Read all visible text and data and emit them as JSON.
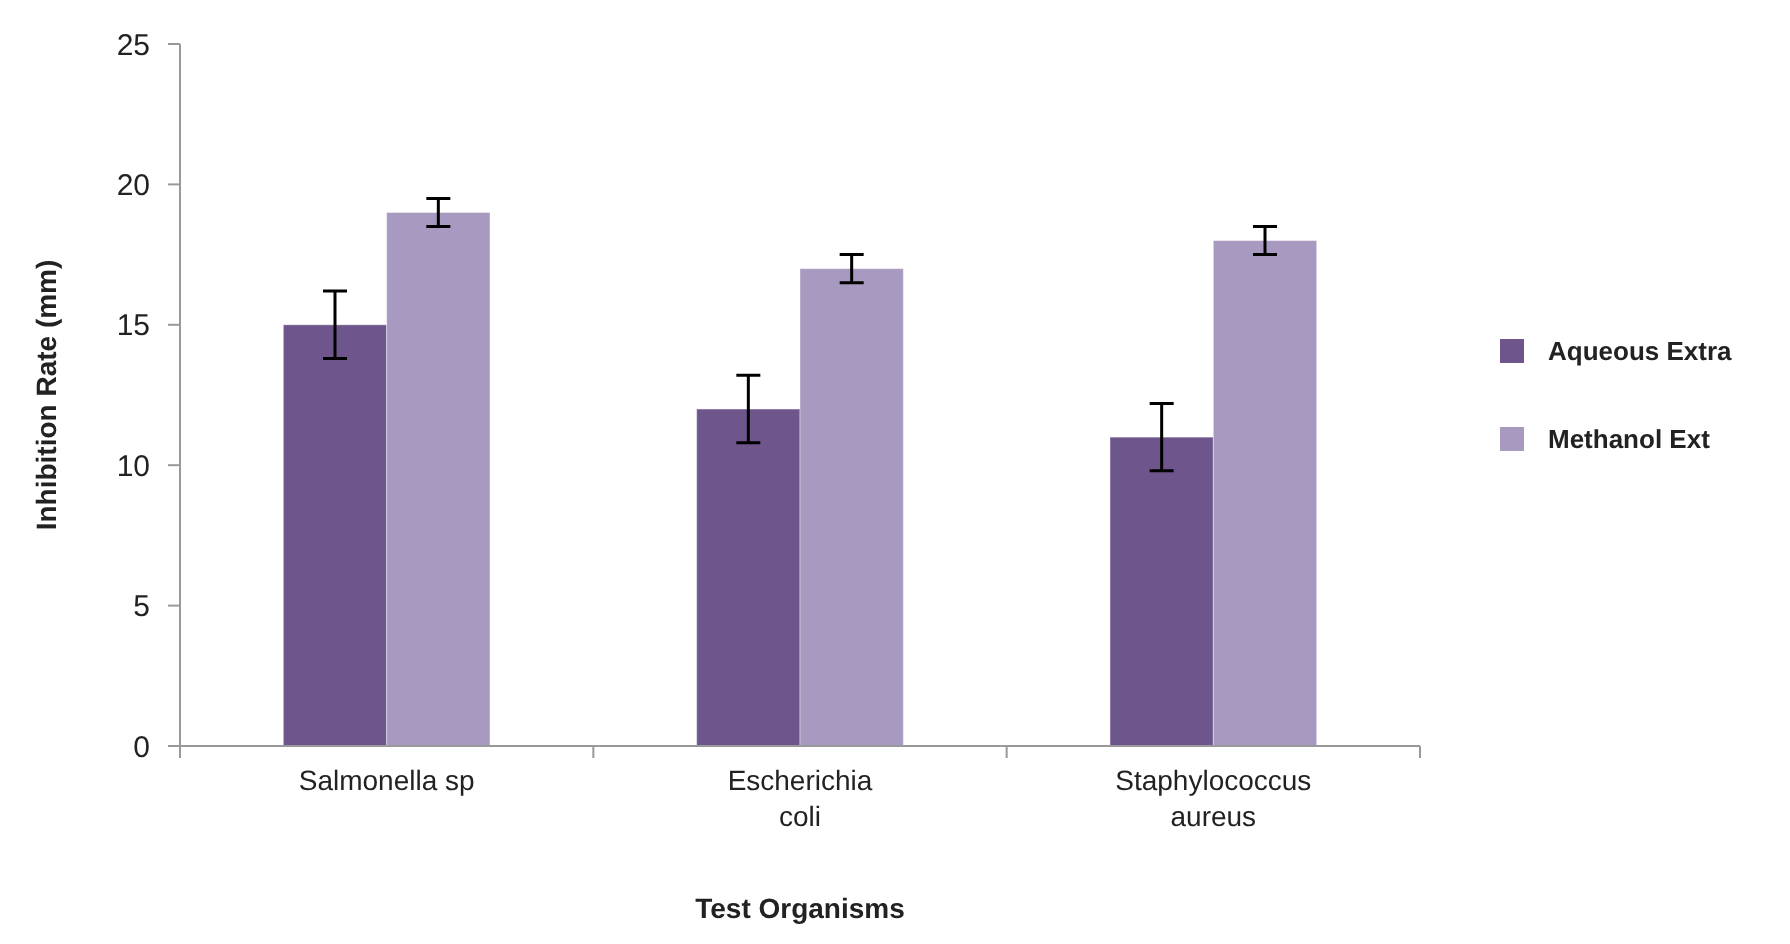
{
  "chart_data": {
    "type": "bar",
    "xlabel": "Test Organisms",
    "ylabel": "Inhibition Rate (mm)",
    "categories": [
      "Salmonella sp",
      "Escherichia coli",
      "Staphylococcus aureus"
    ],
    "series": [
      {
        "name": "Aqueous Extra",
        "color": "#6e568c",
        "values": [
          15,
          12,
          11
        ],
        "errors": [
          1.2,
          1.2,
          1.2
        ]
      },
      {
        "name": "Methanol Ext",
        "color": "#a899c0",
        "values": [
          19,
          17,
          18
        ],
        "errors": [
          0.5,
          0.5,
          0.5
        ]
      }
    ],
    "ylim": [
      0,
      25
    ],
    "yticks": [
      0,
      5,
      10,
      15,
      20,
      25
    ],
    "grid": false,
    "legend": "right"
  }
}
